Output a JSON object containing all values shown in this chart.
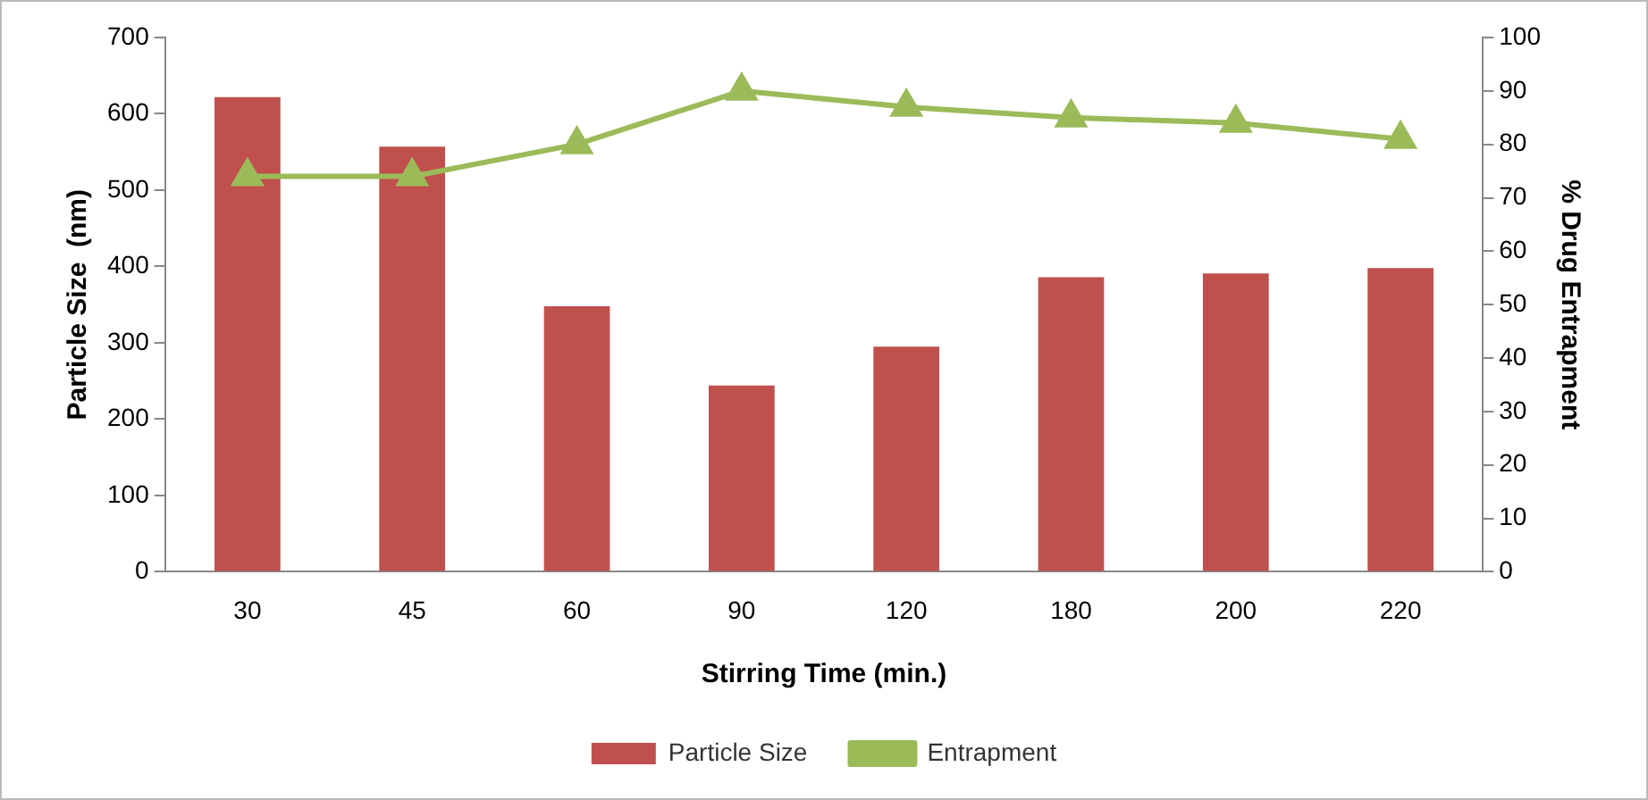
{
  "chart_data": {
    "type": "bar",
    "xlabel": "Stirring Time (min.)",
    "ylabel": "Particle Size  (nm)",
    "y2label": "% Drug Entrapment",
    "categories": [
      "30",
      "45",
      "60",
      "90",
      "120",
      "180",
      "200",
      "220"
    ],
    "series": [
      {
        "name": "Particle Size",
        "color": "#c0504d",
        "values": [
          622,
          557,
          348,
          244,
          295,
          386,
          391,
          398
        ]
      },
      {
        "name": "Entrapment",
        "type": "line",
        "axis": "y2",
        "color": "#9bbb59",
        "marker": "triangle",
        "values": [
          74,
          74,
          80,
          90,
          87,
          85,
          84,
          81
        ]
      }
    ],
    "ylim": [
      0,
      700
    ],
    "yticks": [
      0,
      100,
      200,
      300,
      400,
      500,
      600,
      700
    ],
    "y2lim": [
      0,
      100
    ],
    "y2ticks": [
      0,
      10,
      20,
      30,
      40,
      50,
      60,
      70,
      80,
      90,
      100
    ],
    "grid": false,
    "legend": "bottom"
  }
}
